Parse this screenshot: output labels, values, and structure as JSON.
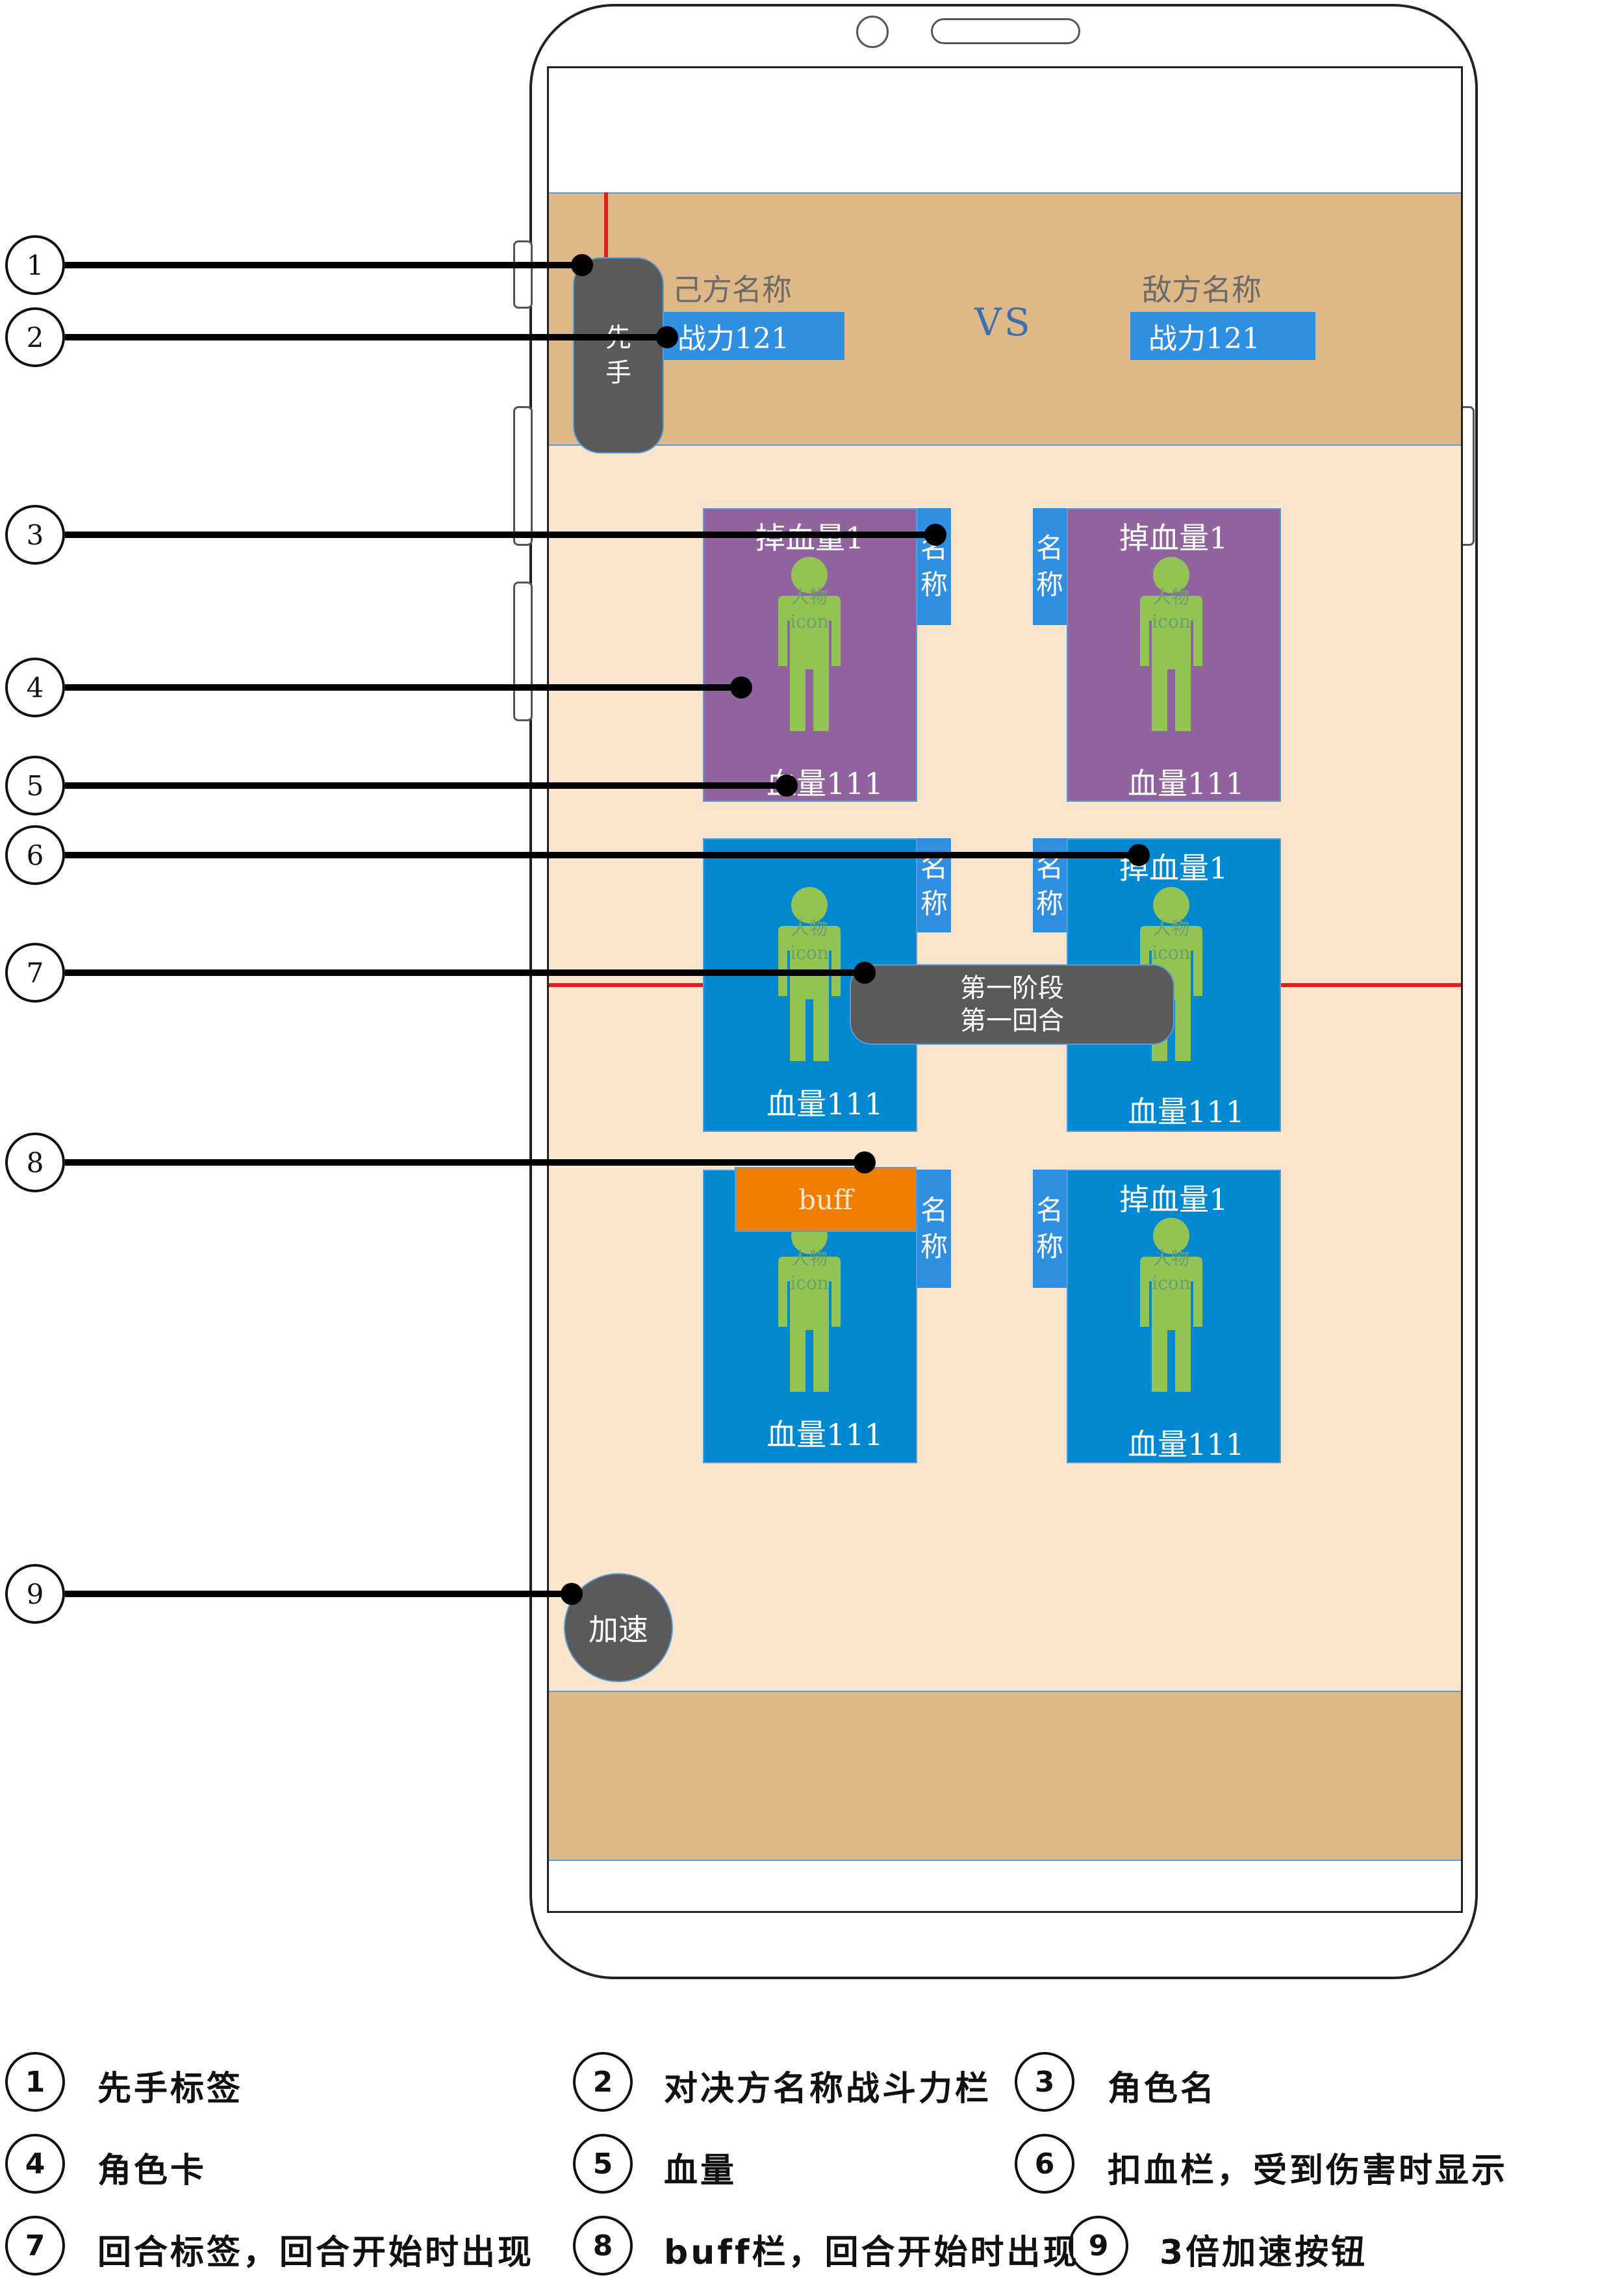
{
  "header": {
    "first_tag": [
      "先",
      "手"
    ],
    "vs": "VS",
    "player": {
      "name": "己方名称",
      "power": "战力121"
    },
    "enemy": {
      "name": "敌方名称",
      "power": "战力121"
    }
  },
  "cards": [
    {
      "hp_loss": "掉血量1",
      "name": [
        "名",
        "称"
      ],
      "icon": [
        "人物",
        "icon"
      ],
      "hp": "血量111"
    },
    {
      "hp_loss": "掉血量1",
      "name": [
        "名",
        "称"
      ],
      "icon": [
        "人物",
        "icon"
      ],
      "hp": "血量111"
    },
    {
      "name": [
        "名",
        "称"
      ],
      "icon": [
        "人物",
        "icon"
      ],
      "hp": "血量111"
    },
    {
      "hp_loss": "掉血量1",
      "name": [
        "名",
        "称"
      ],
      "icon": [
        "人物",
        "icon"
      ],
      "hp": "血量111"
    },
    {
      "name": [
        "名",
        "称"
      ],
      "icon": [
        "人物",
        "icon"
      ],
      "hp": "血量111"
    },
    {
      "hp_loss": "掉血量1",
      "name": [
        "名",
        "称"
      ],
      "icon": [
        "人物",
        "icon"
      ],
      "hp": "血量111"
    }
  ],
  "round_tag": [
    "第一阶段",
    "第一回合"
  ],
  "buff_label": "buff",
  "speed_button": "加速",
  "callouts": [
    "1",
    "2",
    "3",
    "4",
    "5",
    "6",
    "7",
    "8",
    "9"
  ],
  "legend": [
    {
      "num": "1",
      "text": "先手标签"
    },
    {
      "num": "2",
      "text": "对决方名称战斗力栏"
    },
    {
      "num": "3",
      "text": "角色名"
    },
    {
      "num": "4",
      "text": "角色卡"
    },
    {
      "num": "5",
      "text": "血量"
    },
    {
      "num": "6",
      "text": "扣血栏，受到伤害时显示"
    },
    {
      "num": "7",
      "text": "回合标签，回合开始时出现"
    },
    {
      "num": "8",
      "text": "buff栏，回合开始时出现"
    },
    {
      "num": "9",
      "text": "3倍加速按钮"
    }
  ],
  "colors": {
    "header_bg": "#DEB887",
    "battlefield_bg": "#FBE5CC",
    "card_purple": "#91649F",
    "card_blue": "#0089D0",
    "figure_green": "#92C353",
    "label_blue": "#2F8FE0",
    "buff_orange": "#F07E00",
    "tag_gray": "#5A5A5A",
    "marker_red": "#E0201A"
  }
}
